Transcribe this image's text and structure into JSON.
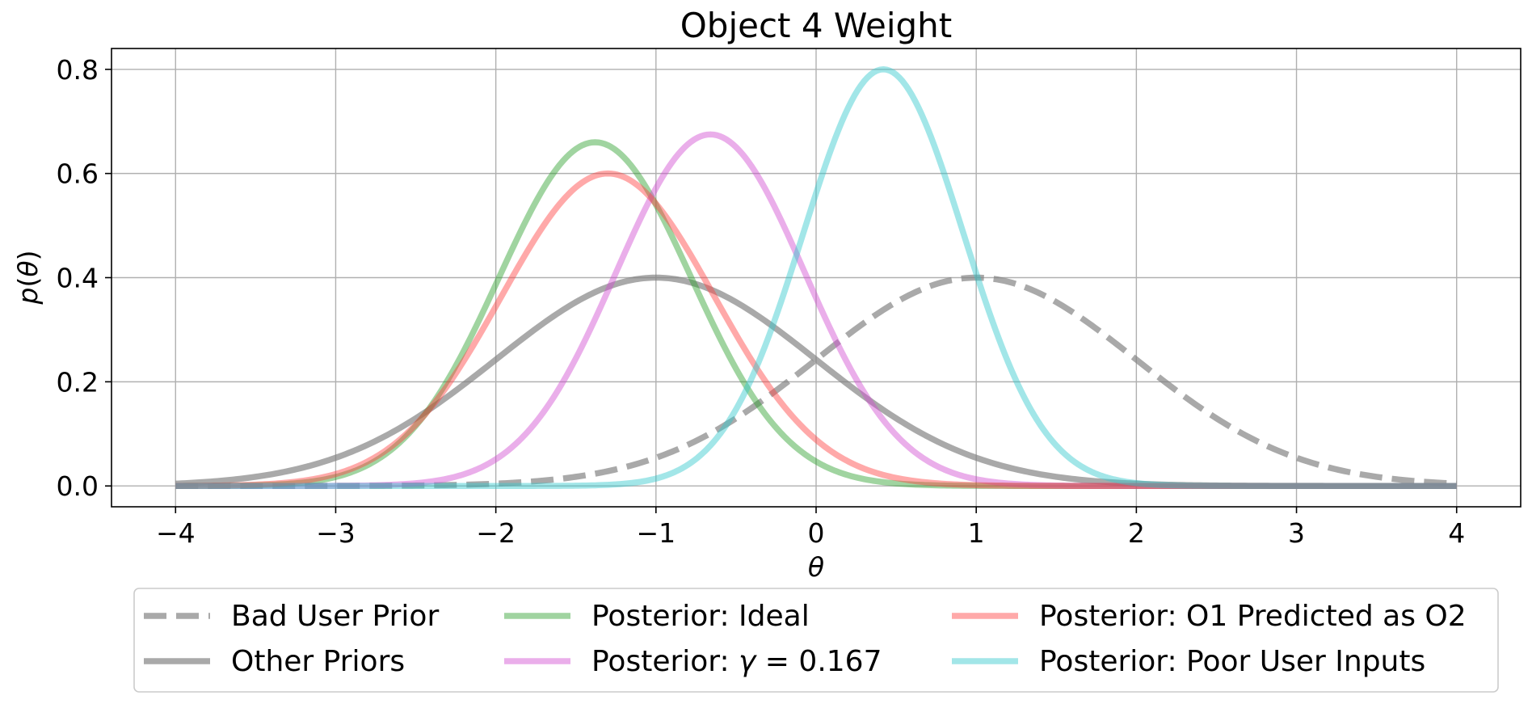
{
  "chart_data": {
    "type": "line",
    "title": "Object 4 Weight",
    "xlabel": "θ",
    "ylabel": "p(θ)",
    "xlim": [
      -4.4,
      4.4
    ],
    "ylim": [
      -0.04,
      0.84
    ],
    "xticks": [
      -4,
      -3,
      -2,
      -1,
      0,
      1,
      2,
      3,
      4
    ],
    "xtick_labels": [
      "−4",
      "−3",
      "−2",
      "−1",
      "0",
      "1",
      "2",
      "3",
      "4"
    ],
    "yticks": [
      0.0,
      0.2,
      0.4,
      0.6,
      0.8
    ],
    "ytick_labels": [
      "0.0",
      "0.2",
      "0.4",
      "0.6",
      "0.8"
    ],
    "grid": true,
    "legend_position": "bottom-center",
    "x_domain": [
      -4,
      4
    ],
    "series": [
      {
        "name": "Bad User Prior",
        "dist": "normal",
        "mean": 1.0,
        "std": 1.0,
        "peak": 0.4,
        "color": "#808080",
        "dashed": true
      },
      {
        "name": "Other Priors",
        "dist": "normal",
        "mean": -1.0,
        "std": 1.0,
        "peak": 0.4,
        "color": "#808080",
        "dashed": false
      },
      {
        "name": "Posterior: Ideal",
        "dist": "normal",
        "mean": -1.38,
        "std": 0.6,
        "peak": 0.66,
        "color": "#2ca02c",
        "dashed": false
      },
      {
        "name_prefix": "Posterior: ",
        "name_symbol": "γ",
        "name_suffix": " = 0.167",
        "dist": "normal",
        "mean": -0.66,
        "std": 0.59,
        "peak": 0.675,
        "color": "#d04cd0",
        "dashed": false
      },
      {
        "name": "Posterior: O1 Predicted as O2",
        "dist": "normal",
        "mean": -1.3,
        "std": 0.665,
        "peak": 0.6,
        "color": "#ff4040",
        "dashed": false
      },
      {
        "name": "Posterior: Poor User Inputs",
        "dist": "normal",
        "mean": 0.42,
        "std": 0.5,
        "peak": 0.8,
        "color": "#30c8cc",
        "dashed": false
      }
    ]
  }
}
